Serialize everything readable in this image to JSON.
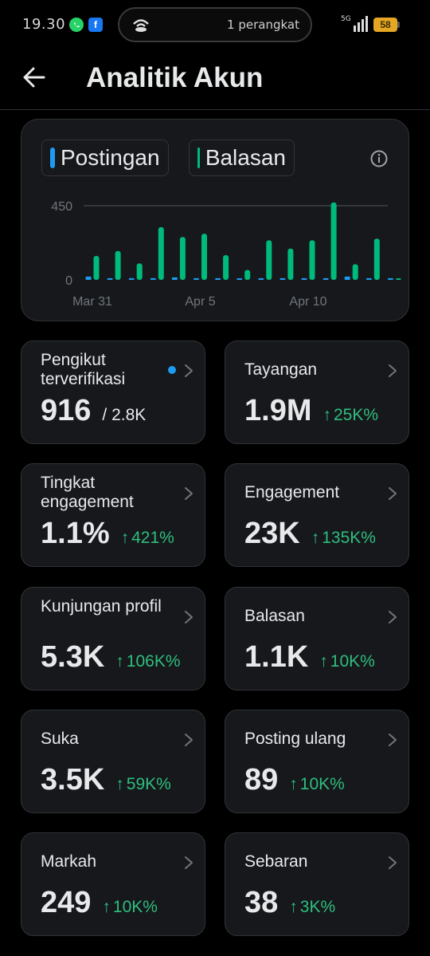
{
  "status_bar": {
    "time": "19.30",
    "connected_devices": "1 perangkat",
    "network": "5G",
    "battery": "58",
    "icons": [
      "whatsapp-icon",
      "facebook-icon",
      "hotspot-icon",
      "signal-icon",
      "battery-icon"
    ]
  },
  "header": {
    "title": "Analitik Akun",
    "back_icon": "arrow-left-icon"
  },
  "chart": {
    "toggles": [
      {
        "label": "Postingan",
        "color": "#1d9bf0"
      },
      {
        "label": "Balasan",
        "color": "#00ba7c"
      }
    ],
    "info_icon": "info-circle-icon"
  },
  "chart_data": {
    "type": "bar",
    "categories": [
      "Mar 31",
      "Apr 1",
      "Apr 2",
      "Apr 3",
      "Apr 4",
      "Apr 5",
      "Apr 6",
      "Apr 7",
      "Apr 8",
      "Apr 9",
      "Apr 10",
      "Apr 11",
      "Apr 12",
      "Apr 13",
      "Apr 14"
    ],
    "x_tick_labels": [
      "Mar 31",
      "Apr 5",
      "Apr 10"
    ],
    "series": [
      {
        "name": "Postingan",
        "color": "#1d9bf0",
        "values": [
          20,
          10,
          10,
          10,
          15,
          10,
          10,
          5,
          10,
          10,
          10,
          10,
          20,
          10,
          10
        ]
      },
      {
        "name": "Balasan",
        "color": "#00ba7c",
        "values": [
          145,
          175,
          100,
          320,
          260,
          280,
          150,
          60,
          240,
          190,
          240,
          470,
          95,
          250,
          0
        ]
      }
    ],
    "yticks": [
      "450",
      "0"
    ],
    "ylim": [
      0,
      450
    ],
    "grid": false
  },
  "metrics": [
    {
      "label": "Pengikut terverifikasi",
      "value": "916",
      "sub": "/ 2.8K",
      "delta": "",
      "verified": true
    },
    {
      "label": "Tayangan",
      "value": "1.9M",
      "sub": "",
      "delta": "25K%"
    },
    {
      "label": "Tingkat engagement",
      "value": "1.1%",
      "sub": "",
      "delta": "421%"
    },
    {
      "label": "Engagement",
      "value": "23K",
      "sub": "",
      "delta": "135K%"
    },
    {
      "label": "Kunjungan profil",
      "value": "5.3K",
      "sub": "",
      "delta": "106K%"
    },
    {
      "label": "Balasan",
      "value": "1.1K",
      "sub": "",
      "delta": "10K%"
    },
    {
      "label": "Suka",
      "value": "3.5K",
      "sub": "",
      "delta": "59K%"
    },
    {
      "label": "Posting ulang",
      "value": "89",
      "sub": "",
      "delta": "10K%"
    },
    {
      "label": "Markah",
      "value": "249",
      "sub": "",
      "delta": "10K%"
    },
    {
      "label": "Sebaran",
      "value": "38",
      "sub": "",
      "delta": "3K%"
    }
  ]
}
